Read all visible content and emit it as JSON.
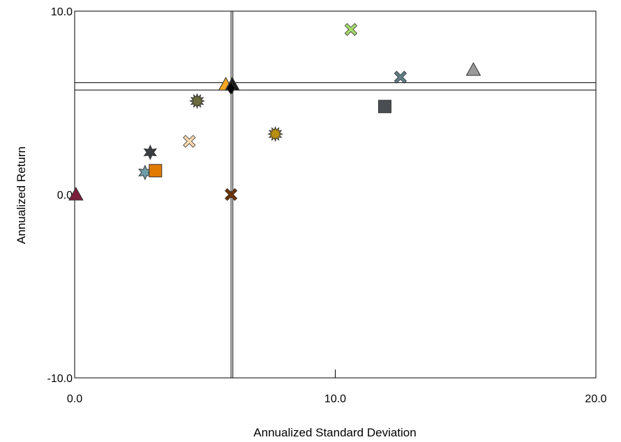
{
  "chart_data": {
    "type": "scatter",
    "title": "",
    "xlabel": "Annualized Standard Deviation",
    "ylabel": "Annualized Return",
    "xlim": [
      0,
      20
    ],
    "ylim": [
      -10,
      10
    ],
    "x_ticks": [
      {
        "value": 0,
        "label": "0.0"
      },
      {
        "value": 10,
        "label": "10.0"
      },
      {
        "value": 20,
        "label": "20.0"
      }
    ],
    "y_ticks": [
      {
        "value": 10,
        "label": "10.0"
      },
      {
        "value": 0,
        "label": "0.0"
      },
      {
        "value": -10,
        "label": "-10.0"
      }
    ],
    "grid": false,
    "legend": "none",
    "reference_lines": {
      "vertical": [
        6.0,
        6.07
      ],
      "horizontal": [
        6.1,
        5.7
      ]
    },
    "points": [
      {
        "x": 10.6,
        "y": 9.0,
        "marker": "x",
        "color": "#a6d96a"
      },
      {
        "x": 12.5,
        "y": 6.4,
        "marker": "x",
        "color": "#5f7d85"
      },
      {
        "x": 15.3,
        "y": 6.8,
        "marker": "triangle",
        "color": "#9a9a9a"
      },
      {
        "x": 11.9,
        "y": 4.8,
        "marker": "square",
        "color": "#4a4d52"
      },
      {
        "x": 5.8,
        "y": 6.0,
        "marker": "triangle",
        "color": "#f5a623"
      },
      {
        "x": 6.05,
        "y": 6.0,
        "marker": "triangle",
        "color": "#1a1a1a"
      },
      {
        "x": 6.0,
        "y": 5.8,
        "marker": "diamond",
        "color": "#000000"
      },
      {
        "x": 4.7,
        "y": 5.1,
        "marker": "burst",
        "color": "#6b6b3d"
      },
      {
        "x": 7.7,
        "y": 3.3,
        "marker": "burst",
        "color": "#b8900e"
      },
      {
        "x": 4.4,
        "y": 2.9,
        "marker": "x",
        "color": "#f9d9b0"
      },
      {
        "x": 2.9,
        "y": 2.3,
        "marker": "star",
        "color": "#3a3d42"
      },
      {
        "x": 2.7,
        "y": 1.2,
        "marker": "star",
        "color": "#6f9ca6"
      },
      {
        "x": 3.1,
        "y": 1.3,
        "marker": "square",
        "color": "#e07b00"
      },
      {
        "x": 0.05,
        "y": 0.0,
        "marker": "triangle",
        "color": "#7a1e3a"
      },
      {
        "x": 6.0,
        "y": 0.0,
        "marker": "x",
        "color": "#6b3300"
      }
    ]
  }
}
